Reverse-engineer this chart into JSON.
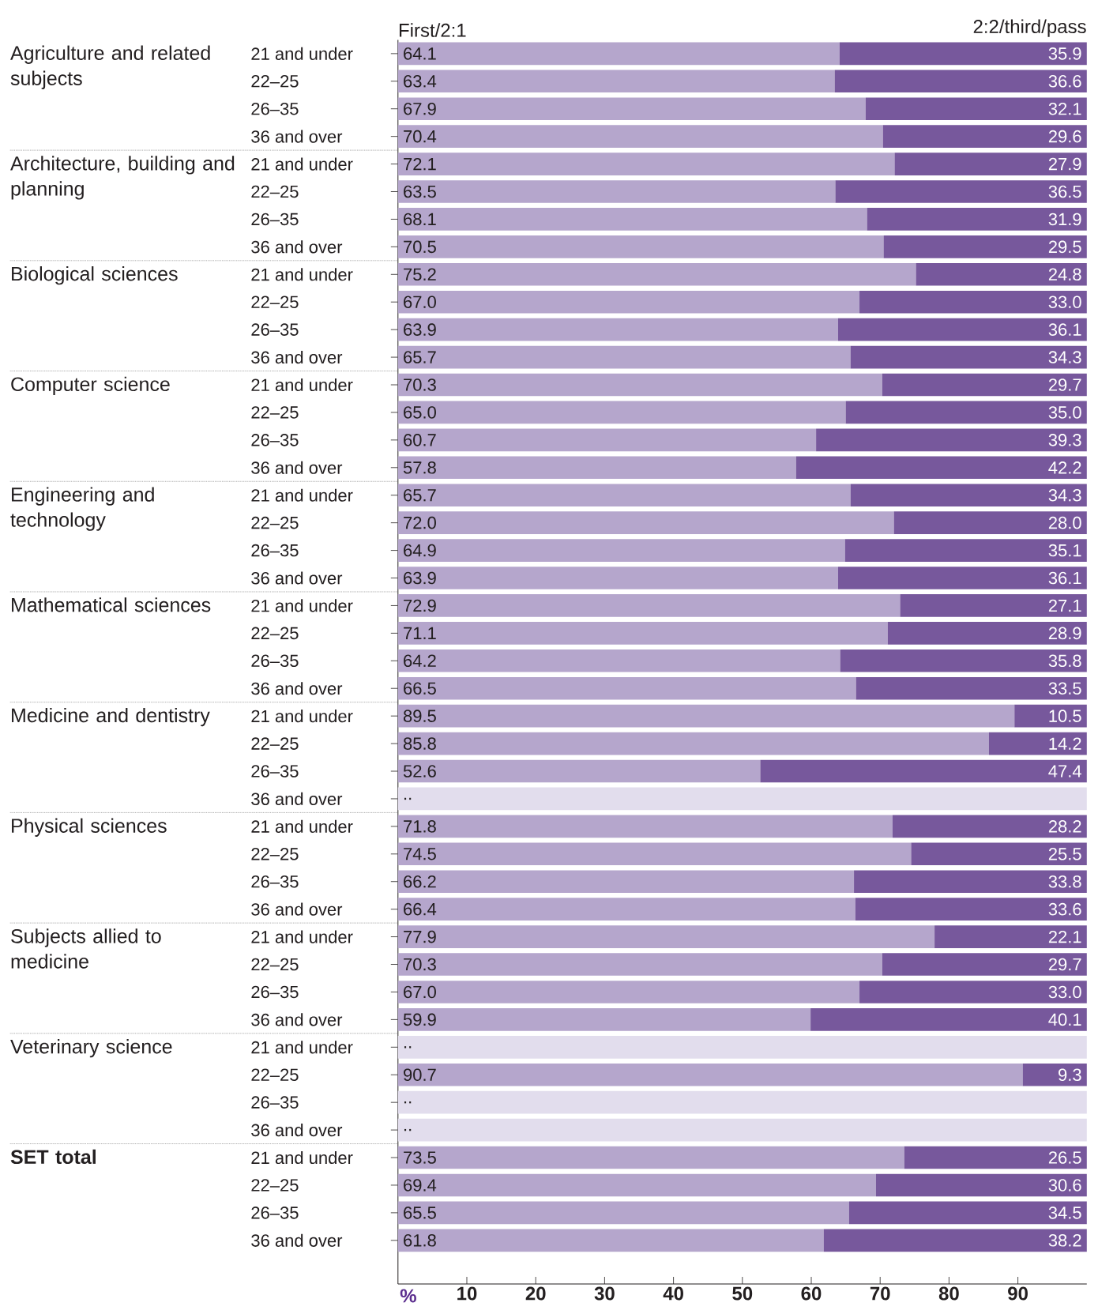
{
  "chart_data": {
    "type": "bar",
    "orientation": "horizontal",
    "stacked": true,
    "legend": "top",
    "xlabel": "%",
    "xlim": [
      0,
      100
    ],
    "xticks": [
      10,
      20,
      30,
      40,
      50,
      60,
      70,
      80,
      90
    ],
    "categories": [
      "21 and under",
      "22–25",
      "26–35",
      "36 and over",
      "21 and under",
      "22–25",
      "26–35",
      "36 and over",
      "21 and under",
      "22–25",
      "26–35",
      "36 and over",
      "21 and under",
      "22–25",
      "26–35",
      "36 and over",
      "21 and under",
      "22–25",
      "26–35",
      "36 and over",
      "21 and under",
      "22–25",
      "26–35",
      "36 and over",
      "21 and under",
      "22–25",
      "26–35",
      "36 and over",
      "21 and under",
      "22–25",
      "26–35",
      "36 and over",
      "21 and under",
      "22–25",
      "26–35",
      "36 and over",
      "21 and under",
      "22–25",
      "26–35",
      "36 and over",
      "21 and under",
      "22–25",
      "26–35",
      "36 and over"
    ],
    "annotations": [
      "Agriculture and related subjects",
      "Architecture, building and planning",
      "Biological sciences",
      "Computer science",
      "Engineering and technology",
      "Mathematical sciences",
      "Medicine and dentistry",
      "Physical sciences",
      "Subjects allied to medicine",
      "Veterinary science",
      "SET total"
    ],
    "series": [
      {
        "name": "First/2:1",
        "color": "#b5a6cc",
        "values": [
          64.1,
          63.4,
          67.9,
          70.4,
          72.1,
          63.5,
          68.1,
          70.5,
          75.2,
          67.0,
          63.9,
          65.7,
          70.3,
          65.0,
          60.7,
          57.8,
          65.7,
          72.0,
          64.9,
          63.9,
          72.9,
          71.1,
          64.2,
          66.5,
          89.5,
          85.8,
          52.6,
          null,
          71.8,
          74.5,
          66.2,
          66.4,
          77.9,
          70.3,
          67.0,
          59.9,
          null,
          90.7,
          null,
          null,
          73.5,
          69.4,
          65.5,
          61.8
        ],
        "value_labels": [
          "64.1",
          "63.4",
          "67.9",
          "70.4",
          "72.1",
          "63.5",
          "68.1",
          "70.5",
          "75.2",
          "67.0",
          "63.9",
          "65.7",
          "70.3",
          "65.0",
          "60.7",
          "57.8",
          "65.7",
          "72.0",
          "64.9",
          "63.9",
          "72.9",
          "71.1",
          "64.2",
          "66.5",
          "89.5",
          "85.8",
          "52.6",
          null,
          "71.8",
          "74.5",
          "66.2",
          "66.4",
          "77.9",
          "70.3",
          "67.0",
          "59.9",
          null,
          "90.7",
          null,
          null,
          "73.5",
          "69.4",
          "65.5",
          "61.8"
        ]
      },
      {
        "name": "2:2/third/pass",
        "color": "#77589c",
        "values": [
          35.9,
          36.6,
          32.1,
          29.6,
          27.9,
          36.5,
          31.9,
          29.5,
          24.8,
          33.0,
          36.1,
          34.3,
          29.7,
          35.0,
          39.3,
          42.2,
          34.3,
          28.0,
          35.1,
          36.1,
          27.1,
          28.9,
          35.8,
          33.5,
          10.5,
          14.2,
          47.4,
          null,
          28.2,
          25.5,
          33.8,
          33.6,
          22.1,
          29.7,
          33.0,
          40.1,
          null,
          9.3,
          null,
          null,
          26.5,
          30.6,
          34.5,
          38.2
        ],
        "value_labels": [
          "35.9",
          "36.6",
          "32.1",
          "29.6",
          "27.9",
          "36.5",
          "31.9",
          "29.5",
          "24.8",
          "33.0",
          "36.1",
          "34.3",
          "29.7",
          "35.0",
          "39.3",
          "42.2",
          "34.3",
          "28.0",
          "35.1",
          "36.1",
          "27.1",
          "28.9",
          "35.8",
          "33.5",
          "10.5",
          "14.2",
          "47.4",
          null,
          "28.2",
          "25.5",
          "33.8",
          "33.6",
          "22.1",
          "29.7",
          "33.0",
          "40.1",
          null,
          "9.3",
          null,
          null,
          "26.5",
          "30.6",
          "34.5",
          "38.2"
        ]
      },
      {
        "color": "#e2dded",
        "values": [
          null,
          null,
          null,
          null,
          null,
          null,
          null,
          null,
          null,
          null,
          null,
          null,
          null,
          null,
          null,
          null,
          null,
          null,
          null,
          null,
          null,
          null,
          null,
          null,
          null,
          null,
          null,
          100,
          null,
          null,
          null,
          null,
          null,
          null,
          null,
          null,
          100,
          null,
          100,
          100,
          null,
          null,
          null,
          null
        ],
        "value_labels": [
          null,
          null,
          null,
          null,
          null,
          null,
          null,
          null,
          null,
          null,
          null,
          null,
          null,
          null,
          null,
          null,
          null,
          null,
          null,
          null,
          null,
          null,
          null,
          null,
          null,
          null,
          null,
          "..",
          null,
          null,
          null,
          null,
          null,
          null,
          null,
          null,
          "..",
          null,
          "..",
          "..",
          null,
          null,
          null,
          null
        ]
      }
    ]
  }
}
